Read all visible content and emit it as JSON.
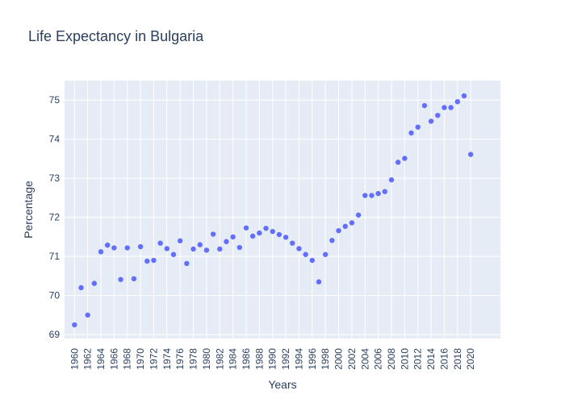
{
  "chart_data": {
    "type": "scatter",
    "title": "Life Expectancy in Bulgaria",
    "xlabel": "Years",
    "ylabel": "Percentage",
    "xlim": [
      1958.5,
      2024.5
    ],
    "ylim": [
      68.9,
      75.5
    ],
    "x_ticks": [
      "1960",
      "1962",
      "1964",
      "1966",
      "1968",
      "1970",
      "1972",
      "1974",
      "1976",
      "1978",
      "1980",
      "1982",
      "1984",
      "1986",
      "1988",
      "1990",
      "1992",
      "1994",
      "1996",
      "1998",
      "2000",
      "2002",
      "2004",
      "2006",
      "2008",
      "2010",
      "2012",
      "2014",
      "2016",
      "2018",
      "2020"
    ],
    "y_ticks": [
      "69",
      "70",
      "71",
      "72",
      "73",
      "74",
      "75"
    ],
    "grid": true,
    "series": [
      {
        "color": "#636efa",
        "x": [
          1960,
          1961,
          1962,
          1963,
          1964,
          1965,
          1966,
          1967,
          1968,
          1969,
          1970,
          1971,
          1972,
          1973,
          1974,
          1975,
          1976,
          1977,
          1978,
          1979,
          1980,
          1981,
          1982,
          1983,
          1984,
          1985,
          1986,
          1987,
          1988,
          1989,
          1990,
          1991,
          1992,
          1993,
          1994,
          1995,
          1996,
          1997,
          1998,
          1999,
          2000,
          2001,
          2002,
          2003,
          2004,
          2005,
          2006,
          2007,
          2008,
          2009,
          2010,
          2011,
          2012,
          2013,
          2014,
          2015,
          2016,
          2017,
          2018,
          2019,
          2020
        ],
        "y": [
          69.25,
          70.2,
          69.5,
          70.31,
          71.12,
          71.29,
          71.22,
          70.41,
          71.22,
          70.43,
          71.25,
          70.88,
          70.9,
          71.34,
          71.2,
          71.05,
          71.4,
          70.82,
          71.19,
          71.3,
          71.16,
          71.57,
          71.19,
          71.38,
          71.5,
          71.23,
          71.73,
          71.52,
          71.6,
          71.72,
          71.64,
          71.56,
          71.49,
          71.34,
          71.2,
          71.05,
          70.9,
          70.35,
          71.05,
          71.41,
          71.66,
          71.77,
          71.86,
          72.06,
          72.56,
          72.56,
          72.61,
          72.66,
          72.96,
          73.41,
          73.51,
          74.16,
          74.31,
          74.86,
          74.46,
          74.61,
          74.81,
          74.81,
          74.96,
          75.11,
          73.61
        ]
      }
    ]
  }
}
